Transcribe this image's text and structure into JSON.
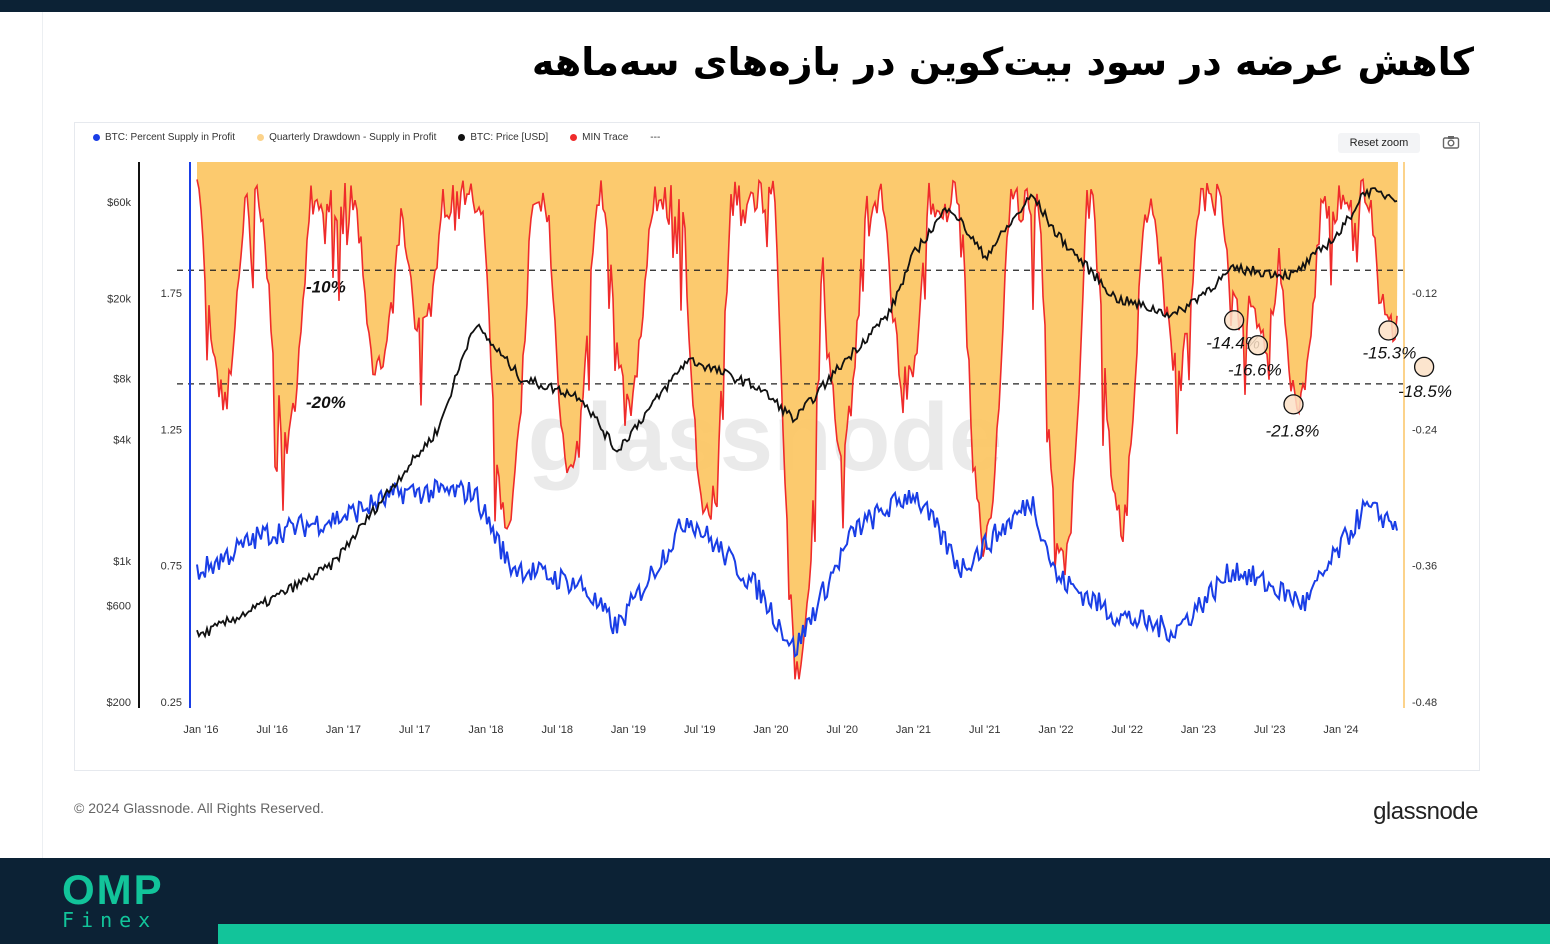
{
  "title": "کاهش عرضه در سود بیت‌کوین در بازه‌های سه‌ماهه",
  "legend": [
    {
      "label": "BTC: Percent Supply in Profit",
      "color": "#1a3ee6"
    },
    {
      "label": "Quarterly Drawdown - Supply in Profit",
      "color": "#fcd38b"
    },
    {
      "label": "BTC: Price [USD]",
      "color": "#111111"
    },
    {
      "label": "MIN Trace",
      "color": "#ef2b2b"
    },
    {
      "label": "---",
      "color": ""
    }
  ],
  "reset_zoom": "Reset zoom",
  "camera_icon": "camera-icon",
  "watermark": "glassnode",
  "copyright": "© 2024 Glassnode. All Rights Reserved.",
  "brand": "glassnode",
  "footer_logo": {
    "top": "OMP",
    "bottom": "Finex"
  },
  "colors": {
    "supply": "#1a3ee6",
    "drawdown_fill": "#fcc766",
    "price": "#111111",
    "min_trace": "#ef2b2b",
    "header": "#0c2235",
    "accent": "#12c49a"
  },
  "chart_data": {
    "type": "line",
    "x_labels": [
      "Jan '16",
      "Jul '16",
      "Jan '17",
      "Jul '17",
      "Jan '18",
      "Jul '18",
      "Jan '19",
      "Jul '19",
      "Jan '20",
      "Jul '20",
      "Jan '21",
      "Jul '21",
      "Jan '22",
      "Jul '22",
      "Jan '23",
      "Jul '23",
      "Jan '24"
    ],
    "price_axis_labels": [
      "$60k",
      "$20k",
      "$8k",
      "$4k",
      "$1k",
      "$600",
      "$200"
    ],
    "supply_axis_labels": [
      "1.75",
      "1.25",
      "0.75",
      "0.25"
    ],
    "drawdown_axis_labels": [
      "-0.12",
      "-0.24",
      "-0.36",
      "-0.48"
    ],
    "reference_lines": [
      {
        "label": "-10%",
        "value": -0.1
      },
      {
        "label": "-20%",
        "value": -0.2
      }
    ],
    "annotations": [
      {
        "label": "-14.4%",
        "date": "2023-04",
        "value": -0.144
      },
      {
        "label": "-16.6%",
        "date": "2023-06",
        "value": -0.166
      },
      {
        "label": "-21.8%",
        "date": "2023-09",
        "value": -0.218
      },
      {
        "label": "-15.3%",
        "date": "2024-05",
        "value": -0.153
      },
      {
        "label": "-18.5%",
        "date": "2024-08",
        "value": -0.185
      }
    ],
    "price_usd": {
      "dates": [
        "2016-01",
        "2016-06",
        "2016-12",
        "2017-05",
        "2017-09",
        "2017-12",
        "2018-04",
        "2018-09",
        "2018-12",
        "2019-06",
        "2019-09",
        "2019-12",
        "2020-03",
        "2020-07",
        "2020-11",
        "2021-01",
        "2021-04",
        "2021-07",
        "2021-11",
        "2022-01",
        "2022-06",
        "2022-11",
        "2023-04",
        "2023-09",
        "2024-01",
        "2024-03",
        "2024-08"
      ],
      "values": [
        430,
        600,
        950,
        2300,
        4500,
        15000,
        8000,
        6500,
        3500,
        10000,
        8500,
        7200,
        5000,
        9500,
        17000,
        33000,
        58000,
        32000,
        65000,
        42000,
        20000,
        16500,
        28000,
        26000,
        43000,
        68000,
        60000
      ]
    },
    "supply_in_profit": {
      "dates": [
        "2016-01",
        "2016-06",
        "2017-01",
        "2017-06",
        "2017-12",
        "2018-03",
        "2018-09",
        "2018-12",
        "2019-06",
        "2019-12",
        "2020-03",
        "2020-08",
        "2021-01",
        "2021-05",
        "2021-11",
        "2022-01",
        "2022-06",
        "2022-11",
        "2023-04",
        "2023-10",
        "2024-03",
        "2024-08"
      ],
      "values": [
        0.73,
        0.86,
        0.93,
        1.02,
        1.02,
        0.75,
        0.68,
        0.52,
        0.93,
        0.66,
        0.44,
        0.88,
        1.02,
        0.74,
        0.99,
        0.71,
        0.57,
        0.51,
        0.74,
        0.61,
        0.96,
        0.86
      ]
    }
  }
}
